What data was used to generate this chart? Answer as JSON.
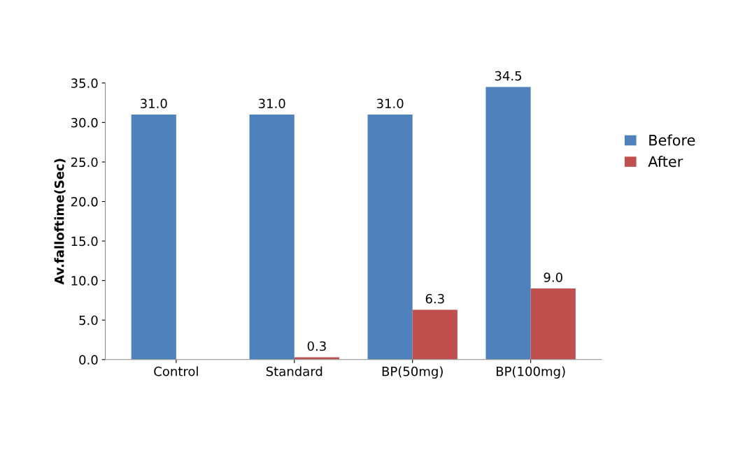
{
  "chart_data": {
    "type": "bar",
    "ylabel": "Av.falloftime(Sec)",
    "categories": [
      "Control",
      "Standard",
      "BP(50mg)",
      "BP(100mg)"
    ],
    "series": [
      {
        "name": "Before",
        "color": "#4f81bd",
        "values": [
          31.0,
          31.0,
          31.0,
          34.5
        ],
        "value_labels": [
          "31.0",
          "31.0",
          "31.0",
          "34.5"
        ]
      },
      {
        "name": "After",
        "color": "#c0504d",
        "values": [
          null,
          0.3,
          6.3,
          9.0
        ],
        "value_labels": [
          null,
          "0.3",
          "6.3",
          "9.0"
        ]
      }
    ],
    "ylim": [
      0,
      35
    ],
    "yticks": [
      {
        "value": 0,
        "label": "0.0"
      },
      {
        "value": 5,
        "label": "5.0"
      },
      {
        "value": 10,
        "label": "10.0"
      },
      {
        "value": 15,
        "label": "15.0"
      },
      {
        "value": 20,
        "label": "20.0"
      },
      {
        "value": 25,
        "label": "25.0"
      },
      {
        "value": 30,
        "label": "30.0"
      },
      {
        "value": 35,
        "label": "35.0"
      }
    ],
    "grid": false,
    "legend": "right"
  }
}
